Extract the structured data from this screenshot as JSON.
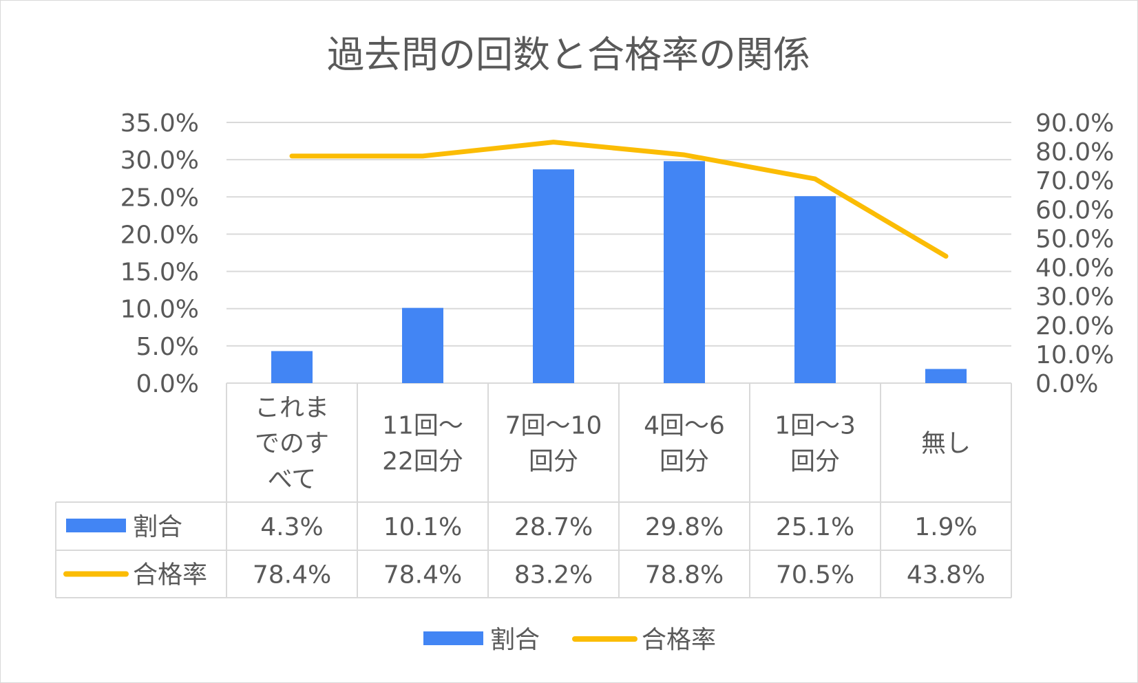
{
  "chart_data": {
    "type": "bar+line",
    "title": "過去問の回数と合格率の関係",
    "categories": [
      "これまでのすべて",
      "11回～22回分",
      "7回～10回分",
      "4回～6回分",
      "1回～3回分",
      "無し"
    ],
    "category_lines": [
      [
        "これま",
        "でのす",
        "べて"
      ],
      [
        "11回～",
        "22回分"
      ],
      [
        "7回～10",
        "回分"
      ],
      [
        "4回～6",
        "回分"
      ],
      [
        "1回～3",
        "回分"
      ],
      [
        "無し"
      ]
    ],
    "series": [
      {
        "name": "割合",
        "type": "bar",
        "axis": "left",
        "color": "#4285f4",
        "values": [
          4.3,
          10.1,
          28.7,
          29.8,
          25.1,
          1.9
        ],
        "labels": [
          "4.3%",
          "10.1%",
          "28.7%",
          "29.8%",
          "25.1%",
          "1.9%"
        ]
      },
      {
        "name": "合格率",
        "type": "line",
        "axis": "right",
        "color": "#fbbc04",
        "values": [
          78.4,
          78.4,
          83.2,
          78.8,
          70.5,
          43.8
        ],
        "labels": [
          "78.4%",
          "78.4%",
          "83.2%",
          "78.8%",
          "70.5%",
          "43.8%"
        ]
      }
    ],
    "y_left": {
      "min": 0,
      "max": 35,
      "step": 5,
      "tick_labels": [
        "0.0%",
        "5.0%",
        "10.0%",
        "15.0%",
        "20.0%",
        "25.0%",
        "30.0%",
        "35.0%"
      ]
    },
    "y_right": {
      "min": 0,
      "max": 90,
      "step": 10,
      "tick_labels": [
        "0.0%",
        "10.0%",
        "20.0%",
        "30.0%",
        "40.0%",
        "50.0%",
        "60.0%",
        "70.0%",
        "80.0%",
        "90.0%"
      ]
    },
    "grid": true,
    "data_table": true,
    "legend_position": "bottom",
    "gridline_color": "#d9d9d9",
    "text_color": "#595959"
  }
}
